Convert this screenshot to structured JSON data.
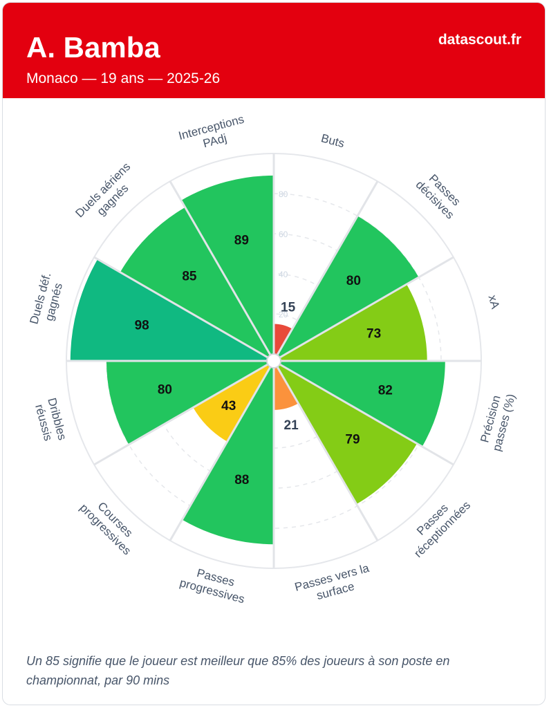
{
  "header": {
    "player_name": "A. Bamba",
    "subtitle": "Monaco — 19 ans — 2025-26",
    "brand": "datascout.fr"
  },
  "chart_data": {
    "type": "polar-bar",
    "title": "A. Bamba",
    "rmax": 100,
    "scale_ticks": [
      20,
      40,
      60,
      80
    ],
    "categories": [
      {
        "label": [
          "Buts"
        ],
        "value": 15,
        "color": "#e84a3a"
      },
      {
        "label": [
          "Passes",
          "décisives"
        ],
        "value": 80,
        "color": "#22c55e"
      },
      {
        "label": [
          "xA"
        ],
        "value": 73,
        "color": "#84cc16"
      },
      {
        "label": [
          "Précision",
          "passes (%)"
        ],
        "value": 82,
        "color": "#22c55e"
      },
      {
        "label": [
          "Passes",
          "réceptionnées"
        ],
        "value": 79,
        "color": "#84cc16"
      },
      {
        "label": [
          "Passes vers la",
          "surface"
        ],
        "value": 21,
        "color": "#fb923c"
      },
      {
        "label": [
          "Passes",
          "progressives"
        ],
        "value": 88,
        "color": "#22c55e"
      },
      {
        "label": [
          "Courses",
          "progressives"
        ],
        "value": 43,
        "color": "#facc15"
      },
      {
        "label": [
          "Dribbles",
          "réussis"
        ],
        "value": 80,
        "color": "#22c55e"
      },
      {
        "label": [
          "Duels déf.",
          "gagnés"
        ],
        "value": 98,
        "color": "#10b981"
      },
      {
        "label": [
          "Duels aériens",
          "gagnés"
        ],
        "value": 85,
        "color": "#22c55e"
      },
      {
        "label": [
          "Interceptions",
          "PAdj"
        ],
        "value": 89,
        "color": "#22c55e"
      }
    ]
  },
  "footnote": "Un 85 signifie que le joueur est meilleur que 85% des joueurs à son poste en championnat, par 90 mins"
}
